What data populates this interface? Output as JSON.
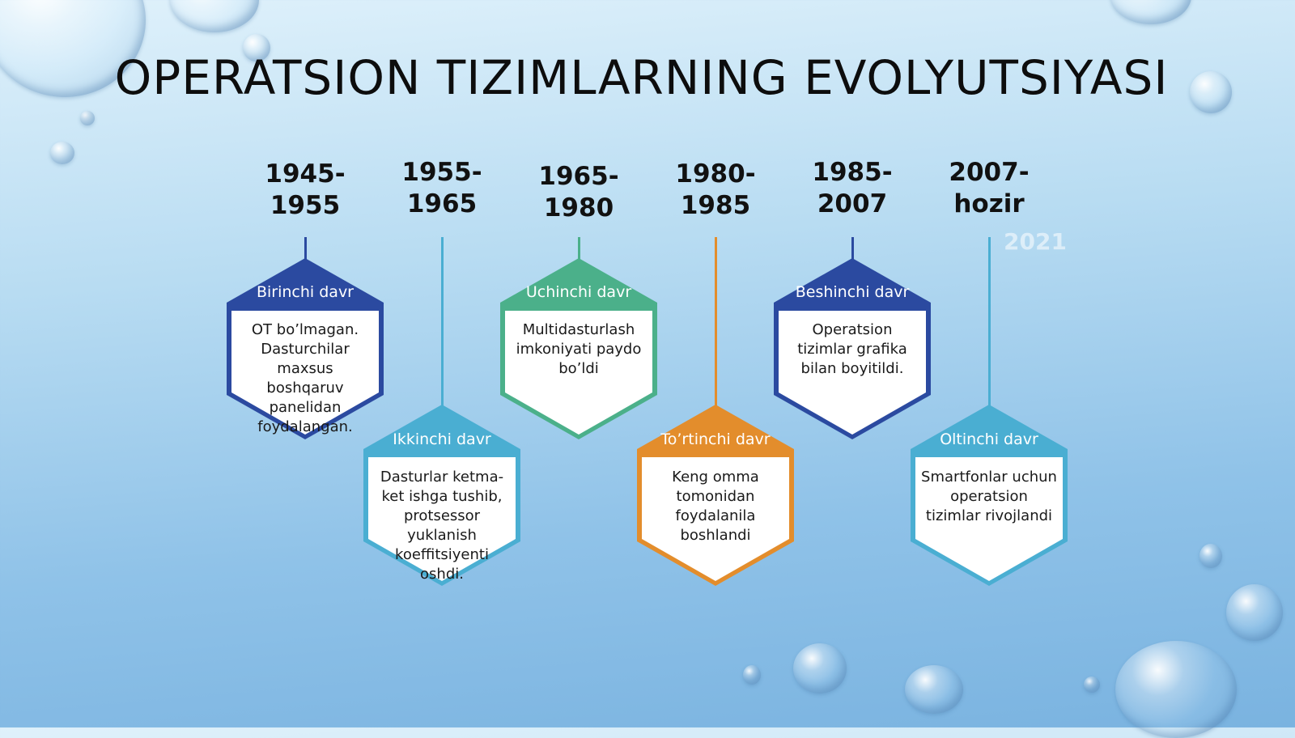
{
  "title": "OPERATSION TIZIMLARNING EVOLYUTSIYASI",
  "faint_year": "2021",
  "eras": [
    {
      "period_start": "1945-",
      "period_end": "1955",
      "label": "Birinchi davr",
      "description": "OT bo’lmagan. Dasturchilar maxsus boshqaruv panelidan foydalangan.",
      "color": "#2b4aa0"
    },
    {
      "period_start": "1955-",
      "period_end": "1965",
      "label": "Ikkinchi davr",
      "description": "Dasturlar ketma-ket ishga tushib, protsessor yuklanish koeffitsiyenti oshdi.",
      "color": "#4aaed2"
    },
    {
      "period_start": "1965-",
      "period_end": "1980",
      "label": "Uchinchi davr",
      "description": "Multidasturlash imkoniyati paydo bo’ldi",
      "color": "#4bb08a"
    },
    {
      "period_start": "1980-",
      "period_end": "1985",
      "label": "To’rtinchi davr",
      "description": "Keng omma tomonidan foydalanila boshlandi",
      "color": "#e38d2c"
    },
    {
      "period_start": "1985-",
      "period_end": "2007",
      "label": "Beshinchi davr",
      "description": "Operatsion tizimlar grafika bilan boyitildi.",
      "color": "#2b4aa0"
    },
    {
      "period_start": "2007-",
      "period_end": "hozir",
      "label": "Oltinchi davr",
      "description": "Smartfonlar uchun operatsion tizimlar rivojlandi",
      "color": "#4aaed2"
    }
  ]
}
